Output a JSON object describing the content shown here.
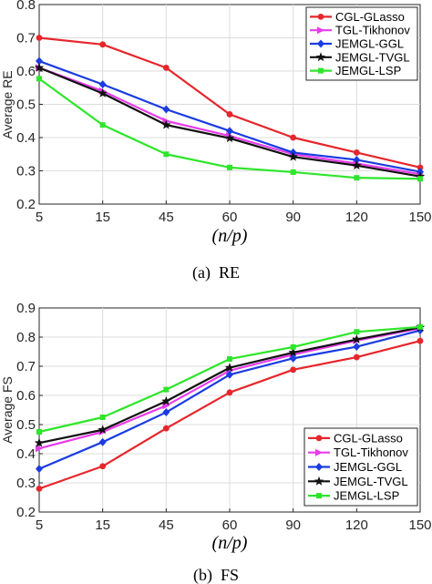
{
  "chart_data": [
    {
      "type": "line",
      "caption": "(a)  RE",
      "ylabel": "Average RE",
      "xlabel": "(n/p)",
      "categories": [
        "5",
        "15",
        "45",
        "60",
        "90",
        "120",
        "150"
      ],
      "ylim": [
        0.2,
        0.8
      ],
      "yticks": [
        "0.2",
        "0.3",
        "0.4",
        "0.5",
        "0.6",
        "0.7",
        "0.8"
      ],
      "grid": true,
      "legend_position": "top-right",
      "series": [
        {
          "name": "CGL-GLasso",
          "color": "#e6262b",
          "marker": "circle",
          "values": [
            0.7,
            0.68,
            0.61,
            0.47,
            0.4,
            0.355,
            0.31
          ]
        },
        {
          "name": "TGL-Tikhonov",
          "color": "#e83cea",
          "marker": "triangle",
          "values": [
            0.61,
            0.54,
            0.45,
            0.405,
            0.35,
            0.322,
            0.29
          ]
        },
        {
          "name": "JEMGL-GGL",
          "color": "#1a3ce0",
          "marker": "diamond",
          "values": [
            0.63,
            0.56,
            0.485,
            0.42,
            0.355,
            0.333,
            0.297
          ]
        },
        {
          "name": "JEMGL-TVGL",
          "color": "#111111",
          "marker": "star",
          "values": [
            0.61,
            0.533,
            0.438,
            0.398,
            0.342,
            0.316,
            0.283
          ]
        },
        {
          "name": "JEMGL-LSP",
          "color": "#2ee62a",
          "marker": "square",
          "values": [
            0.577,
            0.438,
            0.35,
            0.31,
            0.296,
            0.279,
            0.276
          ]
        }
      ]
    },
    {
      "type": "line",
      "caption": "(b)  FS",
      "ylabel": "Average FS",
      "xlabel": "(n/p)",
      "categories": [
        "5",
        "15",
        "45",
        "60",
        "90",
        "120",
        "150"
      ],
      "ylim": [
        0.2,
        0.9
      ],
      "yticks": [
        "0.2",
        "0.3",
        "0.4",
        "0.5",
        "0.6",
        "0.7",
        "0.8",
        "0.9"
      ],
      "grid": true,
      "legend_position": "bottom-right",
      "series": [
        {
          "name": "CGL-GLasso",
          "color": "#e6262b",
          "marker": "circle",
          "values": [
            0.28,
            0.357,
            0.487,
            0.61,
            0.688,
            0.731,
            0.787
          ]
        },
        {
          "name": "TGL-Tikhonov",
          "color": "#e83cea",
          "marker": "triangle",
          "values": [
            0.418,
            0.475,
            0.565,
            0.685,
            0.74,
            0.788,
            0.83
          ]
        },
        {
          "name": "JEMGL-GGL",
          "color": "#1a3ce0",
          "marker": "diamond",
          "values": [
            0.348,
            0.44,
            0.542,
            0.671,
            0.727,
            0.767,
            0.823
          ]
        },
        {
          "name": "JEMGL-TVGL",
          "color": "#111111",
          "marker": "star",
          "values": [
            0.437,
            0.482,
            0.58,
            0.695,
            0.747,
            0.792,
            0.833
          ]
        },
        {
          "name": "JEMGL-LSP",
          "color": "#2ee62a",
          "marker": "square",
          "values": [
            0.475,
            0.525,
            0.62,
            0.725,
            0.766,
            0.818,
            0.835
          ]
        }
      ]
    }
  ]
}
